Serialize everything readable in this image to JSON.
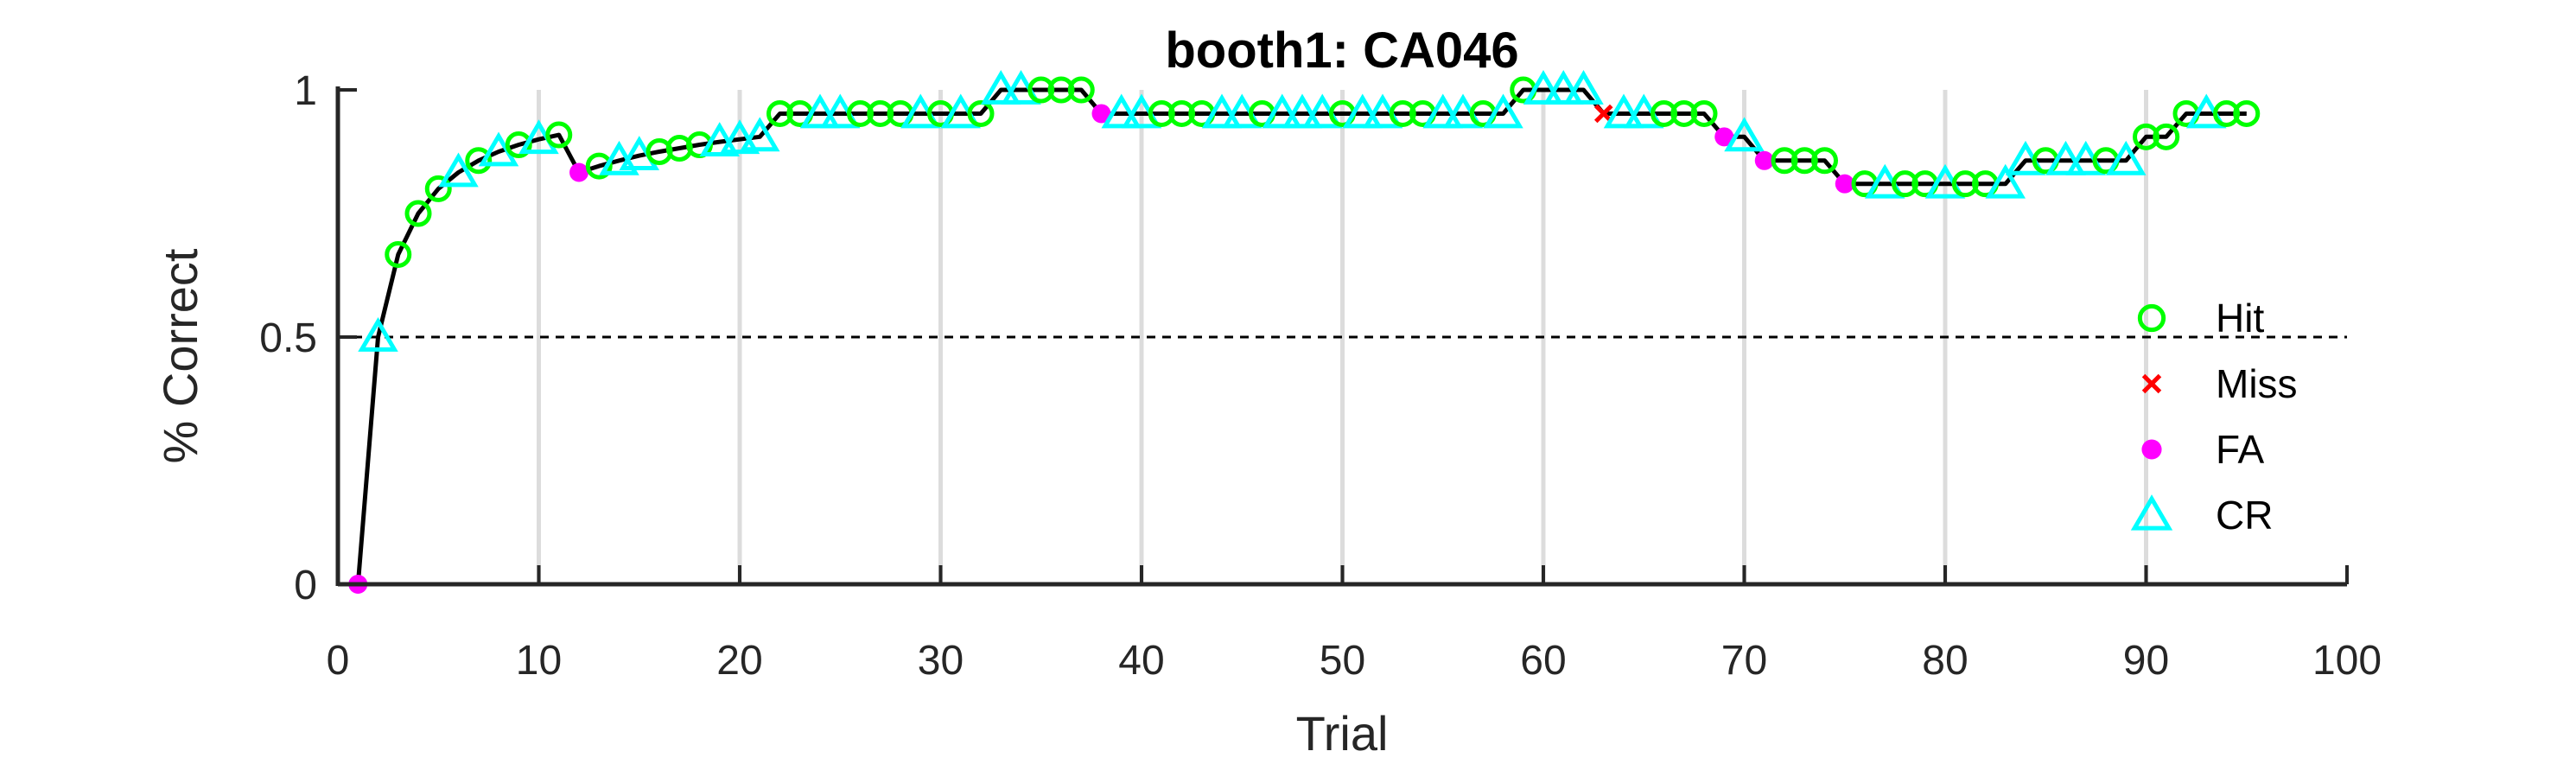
{
  "chart_data": {
    "type": "line",
    "title": "booth1: CA046",
    "xlabel": "Trial",
    "ylabel": "% Correct",
    "xlim": [
      0,
      100
    ],
    "ylim": [
      0,
      1
    ],
    "xticks": [
      0,
      10,
      20,
      30,
      40,
      50,
      60,
      70,
      80,
      90,
      100
    ],
    "yticks": [
      0,
      0.5,
      1
    ],
    "xtick_labels": [
      "0",
      "10",
      "20",
      "30",
      "40",
      "50",
      "60",
      "70",
      "80",
      "90",
      "100"
    ],
    "ytick_labels": [
      "0",
      "0.5",
      "1"
    ],
    "grid": "vertical",
    "reference_line": {
      "y": 0.5,
      "style": "dashed"
    },
    "legend_position": "right",
    "series_styles": {
      "Hit": {
        "color": "#00ff00",
        "marker": "circle"
      },
      "Miss": {
        "color": "#ff0000",
        "marker": "x"
      },
      "FA": {
        "color": "#ff00ff",
        "marker": "dot"
      },
      "CR": {
        "color": "#00ffff",
        "marker": "triangle"
      }
    },
    "legend": [
      "Hit",
      "Miss",
      "FA",
      "CR"
    ],
    "points": [
      {
        "x": 1,
        "y": 0,
        "o": "FA"
      },
      {
        "x": 2,
        "y": 0.5,
        "o": "CR"
      },
      {
        "x": 3,
        "y": 0.667,
        "o": "Hit"
      },
      {
        "x": 4,
        "y": 0.75,
        "o": "Hit"
      },
      {
        "x": 5,
        "y": 0.8,
        "o": "Hit"
      },
      {
        "x": 6,
        "y": 0.833,
        "o": "CR"
      },
      {
        "x": 7,
        "y": 0.857,
        "o": "Hit"
      },
      {
        "x": 8,
        "y": 0.875,
        "o": "CR"
      },
      {
        "x": 9,
        "y": 0.889,
        "o": "Hit"
      },
      {
        "x": 10,
        "y": 0.9,
        "o": "CR"
      },
      {
        "x": 11,
        "y": 0.909,
        "o": "Hit"
      },
      {
        "x": 12,
        "y": 0.833,
        "o": "FA"
      },
      {
        "x": 13,
        "y": 0.846,
        "o": "Hit"
      },
      {
        "x": 14,
        "y": 0.857,
        "o": "CR"
      },
      {
        "x": 15,
        "y": 0.867,
        "o": "CR"
      },
      {
        "x": 16,
        "y": 0.875,
        "o": "Hit"
      },
      {
        "x": 17,
        "y": 0.882,
        "o": "Hit"
      },
      {
        "x": 18,
        "y": 0.889,
        "o": "Hit"
      },
      {
        "x": 19,
        "y": 0.895,
        "o": "CR"
      },
      {
        "x": 20,
        "y": 0.9,
        "o": "CR"
      },
      {
        "x": 21,
        "y": 0.905,
        "o": "CR"
      },
      {
        "x": 22,
        "y": 0.952,
        "o": "Hit"
      },
      {
        "x": 23,
        "y": 0.952,
        "o": "Hit"
      },
      {
        "x": 24,
        "y": 0.952,
        "o": "CR"
      },
      {
        "x": 25,
        "y": 0.952,
        "o": "CR"
      },
      {
        "x": 26,
        "y": 0.952,
        "o": "Hit"
      },
      {
        "x": 27,
        "y": 0.952,
        "o": "Hit"
      },
      {
        "x": 28,
        "y": 0.952,
        "o": "Hit"
      },
      {
        "x": 29,
        "y": 0.952,
        "o": "CR"
      },
      {
        "x": 30,
        "y": 0.952,
        "o": "Hit"
      },
      {
        "x": 31,
        "y": 0.952,
        "o": "CR"
      },
      {
        "x": 32,
        "y": 0.952,
        "o": "Hit"
      },
      {
        "x": 33,
        "y": 1,
        "o": "CR"
      },
      {
        "x": 34,
        "y": 1,
        "o": "CR"
      },
      {
        "x": 35,
        "y": 1,
        "o": "Hit"
      },
      {
        "x": 36,
        "y": 1,
        "o": "Hit"
      },
      {
        "x": 37,
        "y": 1,
        "o": "Hit"
      },
      {
        "x": 38,
        "y": 0.952,
        "o": "FA"
      },
      {
        "x": 39,
        "y": 0.952,
        "o": "CR"
      },
      {
        "x": 40,
        "y": 0.952,
        "o": "CR"
      },
      {
        "x": 41,
        "y": 0.952,
        "o": "Hit"
      },
      {
        "x": 42,
        "y": 0.952,
        "o": "Hit"
      },
      {
        "x": 43,
        "y": 0.952,
        "o": "Hit"
      },
      {
        "x": 44,
        "y": 0.952,
        "o": "CR"
      },
      {
        "x": 45,
        "y": 0.952,
        "o": "CR"
      },
      {
        "x": 46,
        "y": 0.952,
        "o": "Hit"
      },
      {
        "x": 47,
        "y": 0.952,
        "o": "CR"
      },
      {
        "x": 48,
        "y": 0.952,
        "o": "CR"
      },
      {
        "x": 49,
        "y": 0.952,
        "o": "CR"
      },
      {
        "x": 50,
        "y": 0.952,
        "o": "Hit"
      },
      {
        "x": 51,
        "y": 0.952,
        "o": "CR"
      },
      {
        "x": 52,
        "y": 0.952,
        "o": "CR"
      },
      {
        "x": 53,
        "y": 0.952,
        "o": "Hit"
      },
      {
        "x": 54,
        "y": 0.952,
        "o": "Hit"
      },
      {
        "x": 55,
        "y": 0.952,
        "o": "CR"
      },
      {
        "x": 56,
        "y": 0.952,
        "o": "CR"
      },
      {
        "x": 57,
        "y": 0.952,
        "o": "Hit"
      },
      {
        "x": 58,
        "y": 0.952,
        "o": "CR"
      },
      {
        "x": 59,
        "y": 1,
        "o": "Hit"
      },
      {
        "x": 60,
        "y": 1,
        "o": "CR"
      },
      {
        "x": 61,
        "y": 1,
        "o": "CR"
      },
      {
        "x": 62,
        "y": 1,
        "o": "CR"
      },
      {
        "x": 63,
        "y": 0.952,
        "o": "Miss"
      },
      {
        "x": 64,
        "y": 0.952,
        "o": "CR"
      },
      {
        "x": 65,
        "y": 0.952,
        "o": "CR"
      },
      {
        "x": 66,
        "y": 0.952,
        "o": "Hit"
      },
      {
        "x": 67,
        "y": 0.952,
        "o": "Hit"
      },
      {
        "x": 68,
        "y": 0.952,
        "o": "Hit"
      },
      {
        "x": 69,
        "y": 0.905,
        "o": "FA"
      },
      {
        "x": 70,
        "y": 0.905,
        "o": "CR"
      },
      {
        "x": 71,
        "y": 0.857,
        "o": "FA"
      },
      {
        "x": 72,
        "y": 0.857,
        "o": "Hit"
      },
      {
        "x": 73,
        "y": 0.857,
        "o": "Hit"
      },
      {
        "x": 74,
        "y": 0.857,
        "o": "Hit"
      },
      {
        "x": 75,
        "y": 0.81,
        "o": "FA"
      },
      {
        "x": 76,
        "y": 0.81,
        "o": "Hit"
      },
      {
        "x": 77,
        "y": 0.81,
        "o": "CR"
      },
      {
        "x": 78,
        "y": 0.81,
        "o": "Hit"
      },
      {
        "x": 79,
        "y": 0.81,
        "o": "Hit"
      },
      {
        "x": 80,
        "y": 0.81,
        "o": "CR"
      },
      {
        "x": 81,
        "y": 0.81,
        "o": "Hit"
      },
      {
        "x": 82,
        "y": 0.81,
        "o": "Hit"
      },
      {
        "x": 83,
        "y": 0.81,
        "o": "CR"
      },
      {
        "x": 84,
        "y": 0.857,
        "o": "CR"
      },
      {
        "x": 85,
        "y": 0.857,
        "o": "Hit"
      },
      {
        "x": 86,
        "y": 0.857,
        "o": "CR"
      },
      {
        "x": 87,
        "y": 0.857,
        "o": "CR"
      },
      {
        "x": 88,
        "y": 0.857,
        "o": "Hit"
      },
      {
        "x": 89,
        "y": 0.857,
        "o": "CR"
      },
      {
        "x": 90,
        "y": 0.905,
        "o": "Hit"
      },
      {
        "x": 91,
        "y": 0.905,
        "o": "Hit"
      },
      {
        "x": 92,
        "y": 0.952,
        "o": "Hit"
      },
      {
        "x": 93,
        "y": 0.952,
        "o": "CR"
      },
      {
        "x": 94,
        "y": 0.952,
        "o": "Hit"
      },
      {
        "x": 95,
        "y": 0.952,
        "o": "Hit"
      }
    ]
  }
}
